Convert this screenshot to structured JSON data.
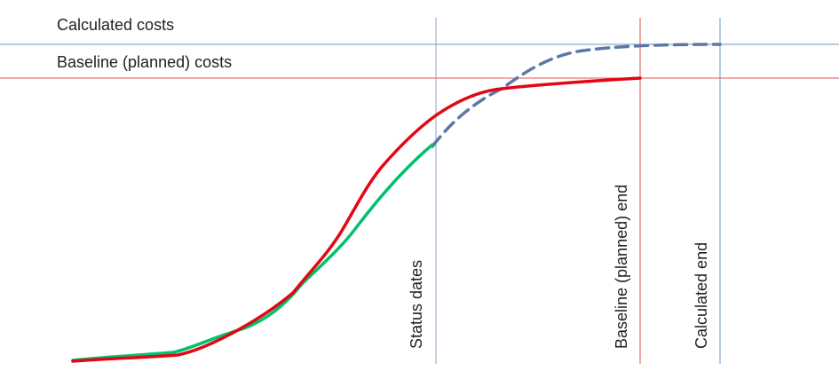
{
  "labels": {
    "calculated_costs": "Calculated costs",
    "baseline_costs": "Baseline (planned) costs",
    "status_dates": "Status dates",
    "baseline_end": "Baseline (planned) end",
    "calculated_end": "Calculated end"
  },
  "colors": {
    "baseline_curve": "#e30613",
    "actual_curve": "#00c170",
    "forecast_curve": "#5b78a8",
    "calculated_line": "#6f95bf",
    "baseline_line": "#e05050",
    "status_line": "#8aa6c8"
  },
  "curves": {
    "baseline": "baseline (planned) cost curve",
    "actual": "actual cost curve up to status date",
    "forecast": "forecast (calculated) cost curve"
  }
}
